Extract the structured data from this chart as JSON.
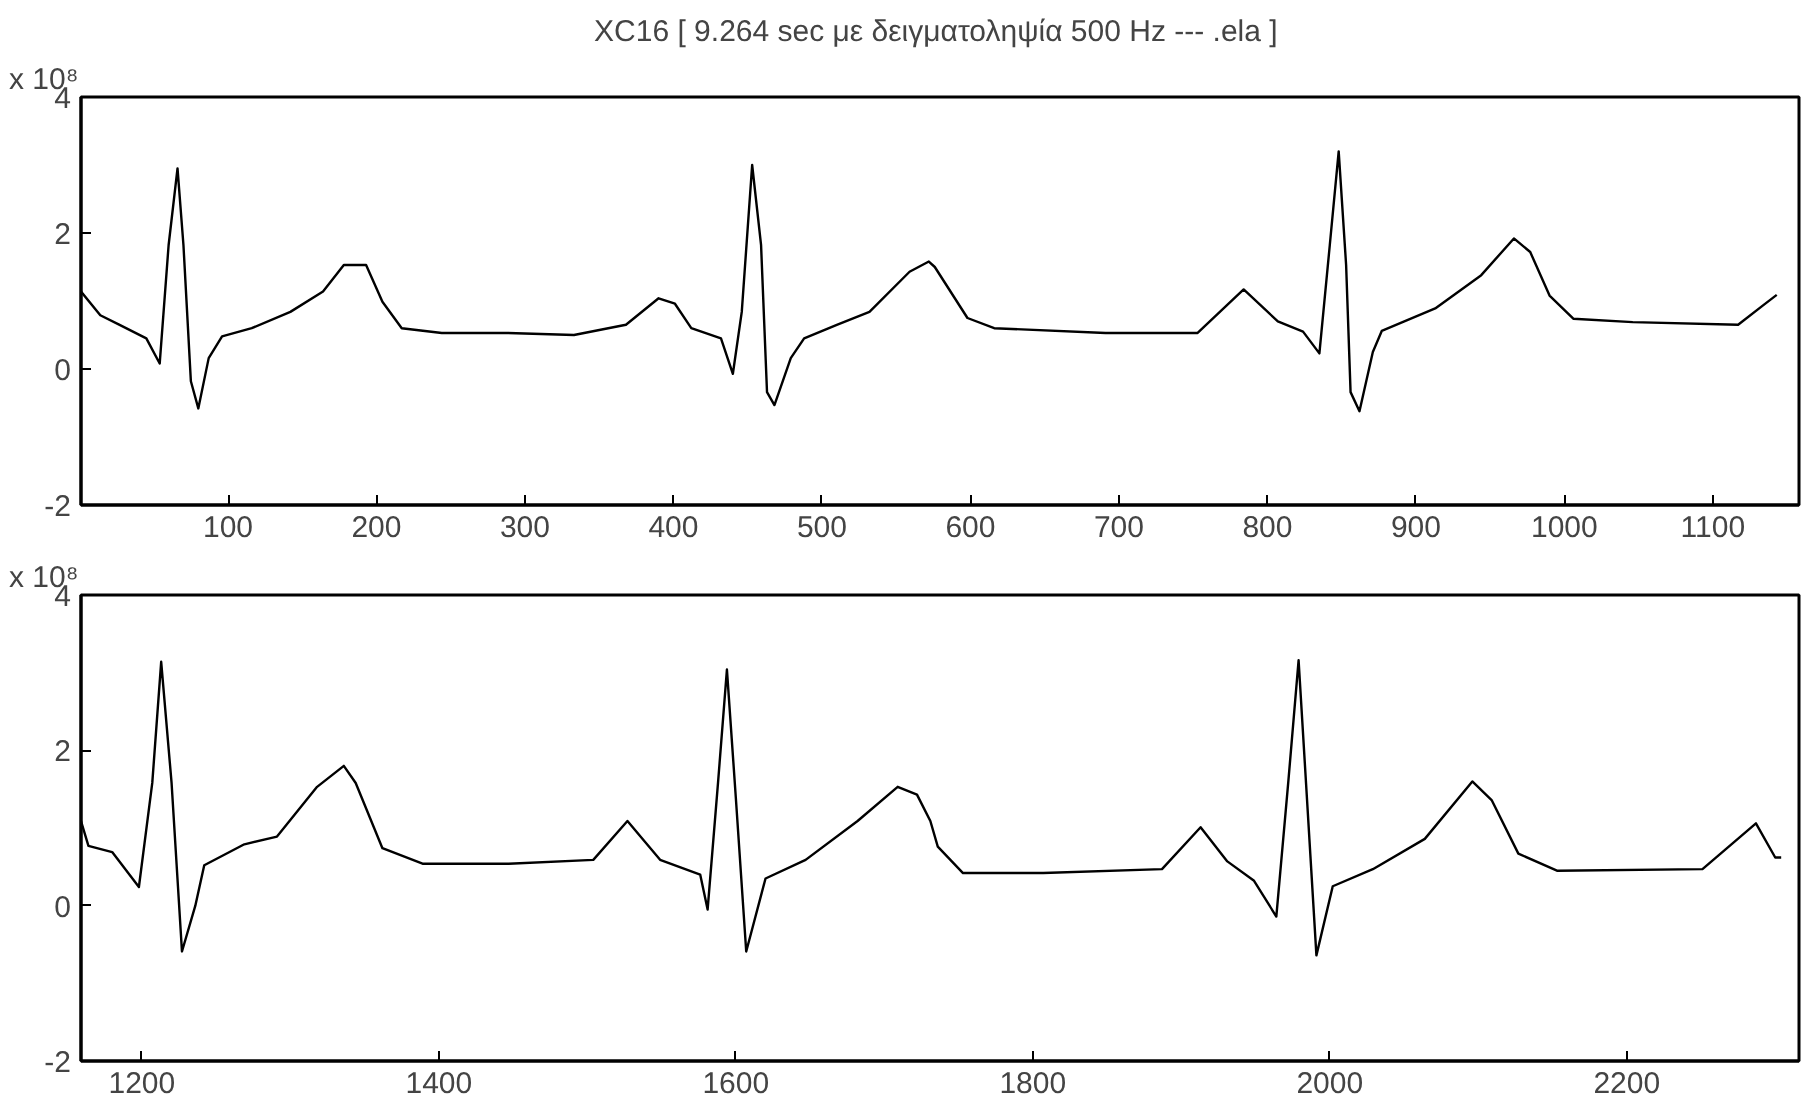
{
  "chart_data": [
    {
      "type": "line",
      "title": "XC16 [ 9.264 sec με δειγματοληψία  500 Hz --- .ela ]",
      "annotations": [
        "x 10⁸"
      ],
      "xlim": [
        1,
        1158
      ],
      "ylim": [
        -2,
        4
      ],
      "xticks": [
        100,
        200,
        300,
        400,
        500,
        600,
        700,
        800,
        900,
        1000,
        1100
      ],
      "yticks": [
        -2,
        0,
        2,
        4
      ],
      "grid": false,
      "marker": "none",
      "line_style": "solid",
      "series": [
        {
          "color": "#000000",
          "x": [
            1,
            14,
            27,
            45,
            54,
            60,
            66,
            70,
            75,
            80,
            87,
            96,
            116,
            142,
            164,
            178,
            193,
            204,
            217,
            244,
            288,
            333,
            368,
            390,
            401,
            412,
            432,
            440,
            446,
            453,
            459,
            463,
            468,
            479,
            488,
            510,
            532,
            559,
            572,
            576,
            598,
            616,
            691,
            753,
            784,
            807,
            824,
            835,
            842,
            848,
            853,
            856,
            862,
            871,
            877,
            913,
            944,
            966,
            977,
            990,
            1006,
            1046,
            1117,
            1134,
            1143
          ],
          "values": [
            1.14,
            0.79,
            0.65,
            0.45,
            0.08,
            1.82,
            2.95,
            1.82,
            -0.18,
            -0.58,
            0.16,
            0.48,
            0.6,
            0.84,
            1.14,
            1.53,
            1.53,
            0.99,
            0.6,
            0.53,
            0.53,
            0.5,
            0.65,
            1.04,
            0.96,
            0.6,
            0.45,
            -0.07,
            0.84,
            3.0,
            1.82,
            -0.34,
            -0.53,
            0.16,
            0.45,
            0.65,
            0.84,
            1.43,
            1.58,
            1.5,
            0.75,
            0.6,
            0.53,
            0.53,
            1.17,
            0.7,
            0.55,
            0.23,
            1.82,
            3.2,
            1.53,
            -0.34,
            -0.62,
            0.25,
            0.56,
            0.89,
            1.38,
            1.92,
            1.72,
            1.08,
            0.74,
            0.69,
            0.65,
            0.94,
            1.09
          ]
        }
      ]
    },
    {
      "type": "line",
      "annotations": [
        "x 10⁸"
      ],
      "xlim": [
        1159,
        2316
      ],
      "ylim": [
        -2,
        4
      ],
      "xticks": [
        1200,
        1400,
        1600,
        1800,
        2000,
        2200
      ],
      "yticks": [
        -2,
        0,
        2,
        4
      ],
      "grid": false,
      "marker": "none",
      "line_style": "solid",
      "series": [
        {
          "color": "#000000",
          "x": [
            1159,
            1164,
            1180,
            1198,
            1207,
            1213,
            1220,
            1227,
            1236,
            1242,
            1269,
            1291,
            1318,
            1336,
            1344,
            1362,
            1389,
            1447,
            1504,
            1527,
            1549,
            1576,
            1581,
            1588,
            1594,
            1600,
            1607,
            1620,
            1647,
            1682,
            1709,
            1722,
            1731,
            1736,
            1753,
            1807,
            1887,
            1913,
            1931,
            1949,
            1964,
            1972,
            1979,
            1984,
            1991,
            2002,
            2029,
            2064,
            2096,
            2109,
            2127,
            2153,
            2251,
            2287,
            2300,
            2304
          ],
          "values": [
            1.09,
            0.77,
            0.69,
            0.24,
            1.58,
            3.14,
            1.58,
            -0.59,
            0.0,
            0.52,
            0.79,
            0.89,
            1.53,
            1.8,
            1.58,
            0.74,
            0.54,
            0.54,
            0.59,
            1.09,
            0.59,
            0.4,
            -0.05,
            1.58,
            3.04,
            1.39,
            -0.59,
            0.35,
            0.59,
            1.09,
            1.53,
            1.43,
            1.09,
            0.76,
            0.42,
            0.42,
            0.47,
            1.01,
            0.57,
            0.32,
            -0.14,
            1.58,
            3.16,
            1.58,
            -0.64,
            0.25,
            0.47,
            0.86,
            1.6,
            1.36,
            0.67,
            0.45,
            0.47,
            1.06,
            0.62,
            0.62
          ]
        }
      ]
    }
  ]
}
